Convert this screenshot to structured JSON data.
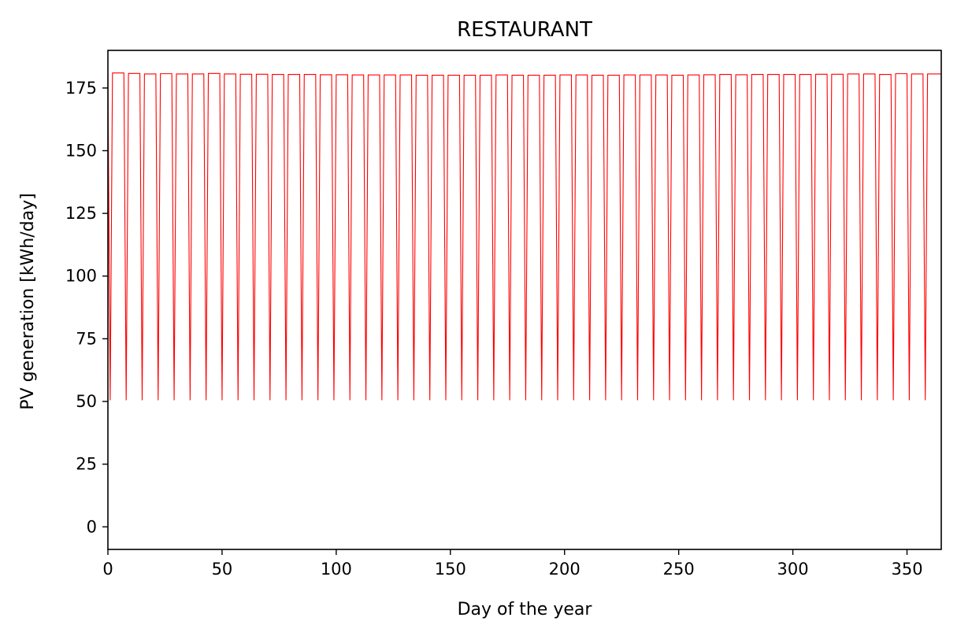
{
  "chart_data": {
    "type": "line",
    "title": "RESTAURANT",
    "xlabel": "Day of the year",
    "ylabel": "PV generation [kWh/day]",
    "xlim": [
      0,
      365
    ],
    "ylim": [
      -9,
      190
    ],
    "x_ticks": [
      0,
      50,
      100,
      150,
      200,
      250,
      300,
      350
    ],
    "y_ticks": [
      0,
      25,
      50,
      75,
      100,
      125,
      150,
      175
    ],
    "grid": false,
    "legend": "none",
    "line_color": "#ff0000",
    "series": [
      {
        "pattern": "weekly: 6 days high, 1 day low",
        "low_value": 50.5,
        "low_days": [
          1,
          8,
          15,
          22,
          29,
          36,
          43,
          50,
          57,
          64,
          71,
          78,
          85,
          92,
          99,
          106,
          113,
          120,
          127,
          134,
          141,
          148,
          155,
          162,
          169,
          176,
          183,
          190,
          197,
          204,
          211,
          218,
          225,
          232,
          239,
          246,
          253,
          260,
          267,
          274,
          281,
          288,
          295,
          302,
          309,
          316,
          323,
          330,
          337,
          344,
          351,
          358
        ],
        "high_values": [
          180.6,
          181.0,
          180.8,
          180.6,
          180.7,
          180.6,
          180.6,
          180.8,
          180.6,
          180.5,
          180.5,
          180.4,
          180.4,
          180.4,
          180.3,
          180.3,
          180.2,
          180.2,
          180.2,
          180.2,
          180.1,
          180.1,
          180.1,
          180.1,
          180.1,
          180.2,
          180.1,
          180.1,
          180.1,
          180.2,
          180.2,
          180.1,
          180.1,
          180.2,
          180.2,
          180.2,
          180.1,
          180.2,
          180.3,
          180.4,
          180.3,
          180.4,
          180.4,
          180.4,
          180.4,
          180.5,
          180.5,
          180.6,
          180.6,
          180.4,
          180.7,
          180.6,
          180.6
        ]
      }
    ]
  }
}
